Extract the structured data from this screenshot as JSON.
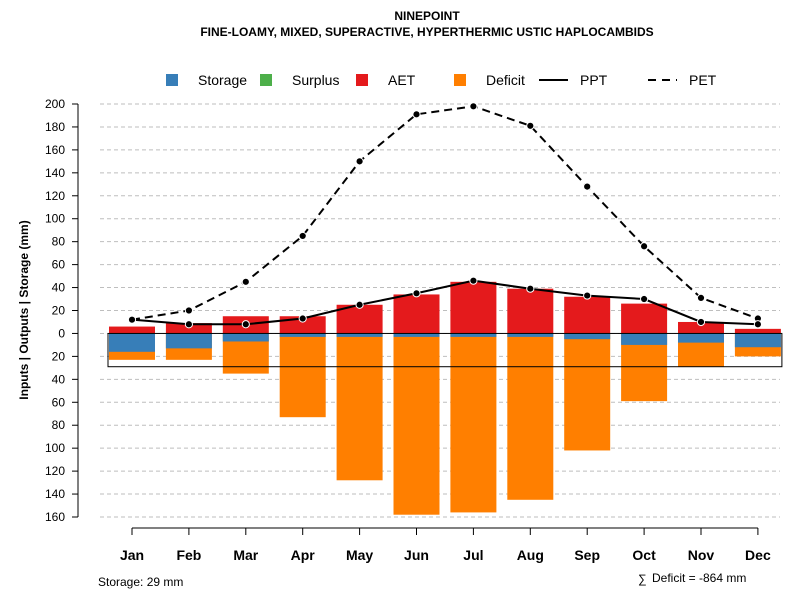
{
  "colors": {
    "storage": "#377EB8",
    "surplus": "#4DAF4A",
    "aet": "#E41A1C",
    "deficit": "#FF7F00",
    "line": "#000000",
    "grid": "#BEBEBE"
  },
  "chart_data": {
    "type": "bar",
    "title": "NINEPOINT",
    "subtitle": "FINE-LOAMY, MIXED, SUPERACTIVE, HYPERTHERMIC USTIC HAPLOCAMBIDS",
    "ylabel": "Inputs | Outputs | Storage     (mm)",
    "xlabel": "",
    "ylim": [
      -160,
      200
    ],
    "grid": true,
    "yticks": [
      200,
      180,
      160,
      140,
      120,
      100,
      80,
      60,
      40,
      20,
      0,
      -20,
      -40,
      -60,
      -80,
      -100,
      -120,
      -140,
      -160
    ],
    "ytick_labels": [
      "200",
      "180",
      "160",
      "140",
      "120",
      "100",
      "80",
      "60",
      "40",
      "20",
      "0",
      "20",
      "40",
      "60",
      "80",
      "100",
      "120",
      "140",
      "160"
    ],
    "categories": [
      "Jan",
      "Feb",
      "Mar",
      "Apr",
      "May",
      "Jun",
      "Jul",
      "Aug",
      "Sep",
      "Oct",
      "Nov",
      "Dec"
    ],
    "legend": [
      {
        "name": "Storage",
        "kind": "box",
        "color_key": "storage"
      },
      {
        "name": "Surplus",
        "kind": "box",
        "color_key": "surplus"
      },
      {
        "name": "AET",
        "kind": "box",
        "color_key": "aet"
      },
      {
        "name": "Deficit",
        "kind": "box",
        "color_key": "deficit"
      },
      {
        "name": "PPT",
        "kind": "solid"
      },
      {
        "name": "PET",
        "kind": "dashed"
      }
    ],
    "storage_capacity": 29,
    "series": [
      {
        "name": "AET",
        "type": "bar",
        "values": [
          6,
          9,
          15,
          15,
          25,
          34,
          45,
          39,
          32,
          26,
          10,
          4
        ]
      },
      {
        "name": "Storage",
        "type": "bar",
        "values": [
          -16,
          -13,
          -7,
          -3,
          -3,
          -3,
          -3,
          -3,
          -5,
          -10,
          -8,
          -12
        ]
      },
      {
        "name": "Deficit",
        "type": "bar",
        "values": [
          -23,
          -23,
          -35,
          -73,
          -128,
          -158,
          -156,
          -145,
          -102,
          -59,
          -29,
          -20
        ]
      },
      {
        "name": "PPT",
        "type": "line",
        "values": [
          12,
          8,
          8,
          13,
          25,
          35,
          46,
          39,
          33,
          30,
          10,
          8
        ]
      },
      {
        "name": "PET",
        "type": "line",
        "values": [
          12,
          20,
          45,
          85,
          150,
          191,
          198,
          181,
          128,
          76,
          31,
          13
        ]
      }
    ]
  },
  "notes": {
    "storage": "Storage: 29 mm",
    "deficit_symbol": "∑",
    "deficit": "Deficit = -864 mm"
  }
}
